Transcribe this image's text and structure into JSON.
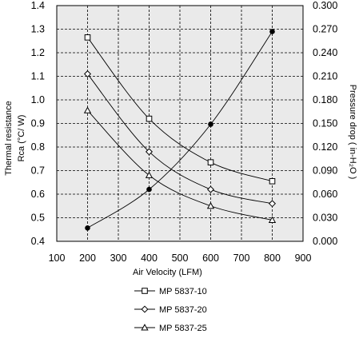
{
  "chart_data": {
    "type": "line",
    "xlabel": "Air Velocity (LFM)",
    "ylabel_left_line1": "Thermal resistance",
    "ylabel_left_line2": "Rca (°C/ W)",
    "ylabel_right": "Pressure drop ( in-H₂O )",
    "xlim": [
      100,
      900
    ],
    "x_ticks": [
      "100",
      "200",
      "300",
      "400",
      "500",
      "600",
      "700",
      "800",
      "900"
    ],
    "ylim_left": [
      0.4,
      1.4
    ],
    "y_ticks_left": [
      "0.4",
      "0.5",
      "0.6",
      "0.7",
      "0.8",
      "0.9",
      "1.0",
      "1.1",
      "1.2",
      "1.3",
      "1.4"
    ],
    "ylim_right": [
      0.0,
      0.3
    ],
    "y_ticks_right": [
      "0.000",
      "0.030",
      "0.060",
      "0.090",
      "0.120",
      "0.150",
      "0.180",
      "0.210",
      "0.240",
      "0.270",
      "0.300"
    ],
    "grid": true,
    "legend_position": "bottom",
    "series": [
      {
        "name": "MP 5837-10",
        "axis": "left",
        "marker": "square",
        "x": [
          200,
          400,
          600,
          800
        ],
        "y": [
          1.265,
          0.92,
          0.735,
          0.655
        ]
      },
      {
        "name": "MP 5837-20",
        "axis": "left",
        "marker": "diamond",
        "x": [
          200,
          400,
          600,
          800
        ],
        "y": [
          1.11,
          0.78,
          0.62,
          0.56
        ]
      },
      {
        "name": "MP 5837-25",
        "axis": "left",
        "marker": "triangle",
        "x": [
          200,
          400,
          600,
          800
        ],
        "y": [
          0.955,
          0.68,
          0.55,
          0.49
        ]
      },
      {
        "axis": "right",
        "marker": "dot",
        "x": [
          200,
          400,
          600,
          800
        ],
        "y": [
          0.017,
          0.066,
          0.149,
          0.267
        ]
      }
    ],
    "colors": {
      "plot_background": "#eaeaea",
      "line": "#000000",
      "grid": "#000000"
    }
  }
}
